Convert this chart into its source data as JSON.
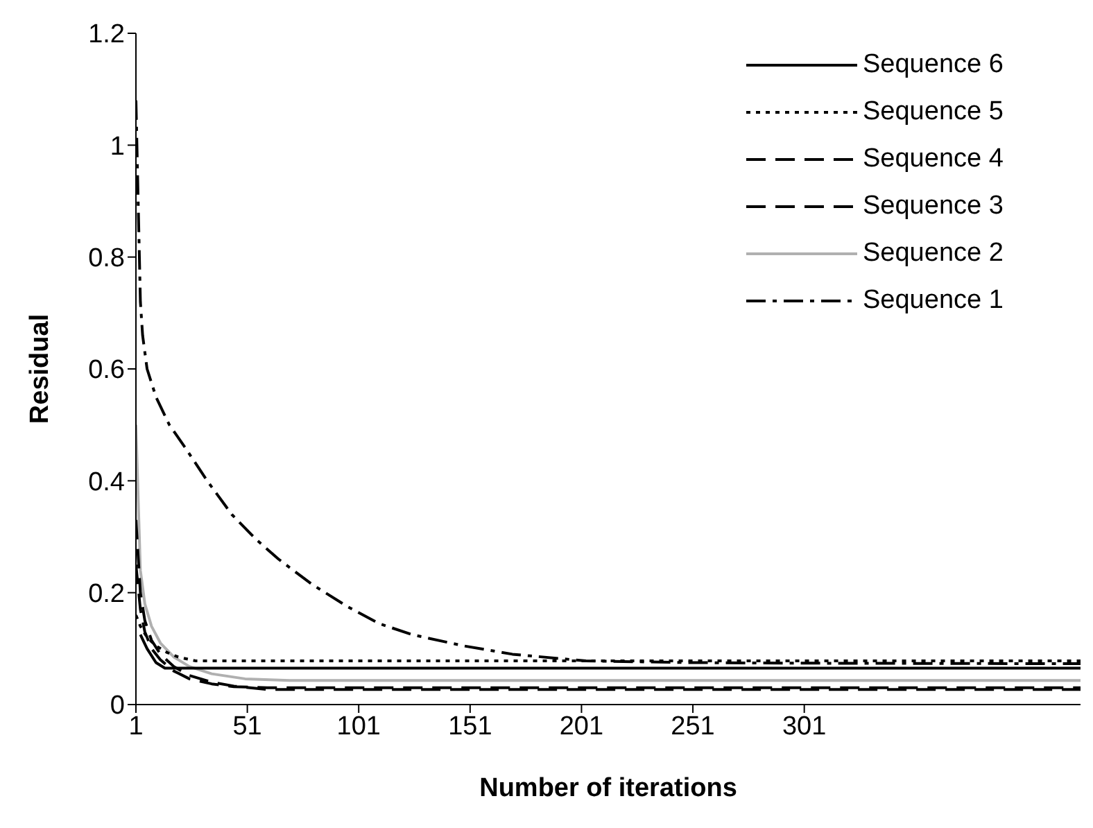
{
  "chart_data": {
    "type": "line",
    "xlabel": "Number of iterations",
    "ylabel": "Residual",
    "xlim": [
      1,
      425
    ],
    "xticks": [
      1,
      51,
      101,
      151,
      201,
      251,
      301
    ],
    "ylim": [
      0,
      1.2
    ],
    "yticks": [
      0,
      0.2,
      0.4,
      0.6,
      0.8,
      1,
      1.2
    ],
    "grid": false,
    "legend": "top right",
    "marker": "none",
    "series": [
      {
        "name": "Sequence 1",
        "color": "#000000",
        "line_style": "dashdot",
        "x": [
          1,
          2,
          3,
          4,
          6,
          10,
          16,
          23,
          33,
          44,
          55,
          65,
          80,
          96,
          110,
          125,
          148,
          170,
          203,
          250,
          300,
          425
        ],
        "values": [
          1.08,
          0.9,
          0.72,
          0.66,
          0.6,
          0.55,
          0.5,
          0.46,
          0.4,
          0.34,
          0.295,
          0.26,
          0.215,
          0.175,
          0.145,
          0.125,
          0.105,
          0.09,
          0.078,
          0.075,
          0.074,
          0.073
        ]
      },
      {
        "name": "Sequence 2",
        "color": "#b0b0b0",
        "line_style": "solid",
        "x": [
          1,
          3,
          5,
          8,
          12,
          18,
          25,
          35,
          50,
          70,
          425
        ],
        "values": [
          0.5,
          0.24,
          0.18,
          0.14,
          0.11,
          0.085,
          0.068,
          0.055,
          0.046,
          0.043,
          0.043
        ]
      },
      {
        "name": "Sequence 3",
        "color": "#000000",
        "line_style": "dashed",
        "x": [
          1,
          3,
          5,
          8,
          12,
          18,
          25,
          35,
          45,
          60,
          425
        ],
        "values": [
          0.33,
          0.2,
          0.15,
          0.115,
          0.09,
          0.068,
          0.052,
          0.04,
          0.033,
          0.027,
          0.027
        ]
      },
      {
        "name": "Sequence 4",
        "color": "#000000",
        "line_style": "dashed",
        "x": [
          1,
          3,
          5,
          8,
          12,
          18,
          25,
          35,
          45,
          60,
          425
        ],
        "values": [
          0.25,
          0.17,
          0.13,
          0.1,
          0.08,
          0.06,
          0.046,
          0.037,
          0.032,
          0.03,
          0.03
        ]
      },
      {
        "name": "Sequence 5",
        "color": "#000000",
        "line_style": "dotted",
        "x": [
          1,
          3,
          6,
          10,
          15,
          20,
          28,
          425
        ],
        "values": [
          0.16,
          0.14,
          0.12,
          0.105,
          0.093,
          0.085,
          0.078,
          0.078
        ]
      },
      {
        "name": "Sequence 6",
        "color": "#000000",
        "line_style": "solid",
        "x": [
          3,
          6,
          10,
          14,
          425
        ],
        "values": [
          0.125,
          0.1,
          0.075,
          0.065,
          0.065
        ]
      }
    ]
  }
}
